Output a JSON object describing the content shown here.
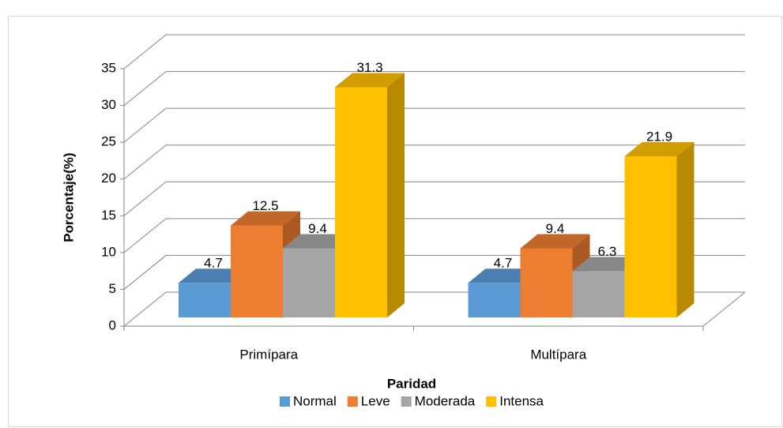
{
  "chart_data": {
    "type": "bar3d",
    "ylabel": "Porcentaje(%)",
    "xlabel": "Paridad",
    "categories": [
      "Primípara",
      "Multípara"
    ],
    "series": [
      {
        "name": "Normal",
        "color": "#5b9bd5",
        "values": [
          4.7,
          4.7
        ]
      },
      {
        "name": "Leve",
        "color": "#ed7d31",
        "values": [
          12.5,
          9.4
        ]
      },
      {
        "name": "Moderada",
        "color": "#a5a5a5",
        "values": [
          9.4,
          6.3
        ]
      },
      {
        "name": "Intensa",
        "color": "#ffc000",
        "values": [
          31.3,
          21.9
        ]
      }
    ],
    "ylim": [
      0,
      35
    ],
    "yticks": [
      0,
      5,
      10,
      15,
      20,
      25,
      30,
      35
    ],
    "grid": true,
    "legend": "bottom"
  }
}
